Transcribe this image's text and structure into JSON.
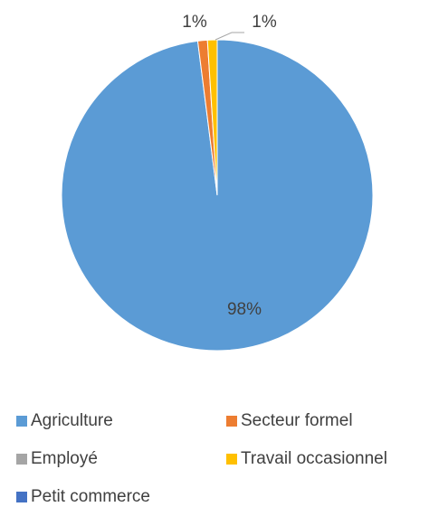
{
  "chart_data": {
    "type": "pie",
    "title": "",
    "slices": [
      {
        "label": "Agriculture",
        "value": 98,
        "display": "98%",
        "color": "#5B9BD5"
      },
      {
        "label": "Secteur formel",
        "value": 1,
        "display": "1%",
        "color": "#ED7D31"
      },
      {
        "label": "Employé",
        "value": 0,
        "display": "",
        "color": "#A5A5A5"
      },
      {
        "label": "Travail occasionnel",
        "value": 1,
        "display": "1%",
        "color": "#FFC000"
      },
      {
        "label": "Petit commerce",
        "value": 0,
        "display": "",
        "color": "#4472C4"
      }
    ],
    "legend_position": "bottom"
  }
}
